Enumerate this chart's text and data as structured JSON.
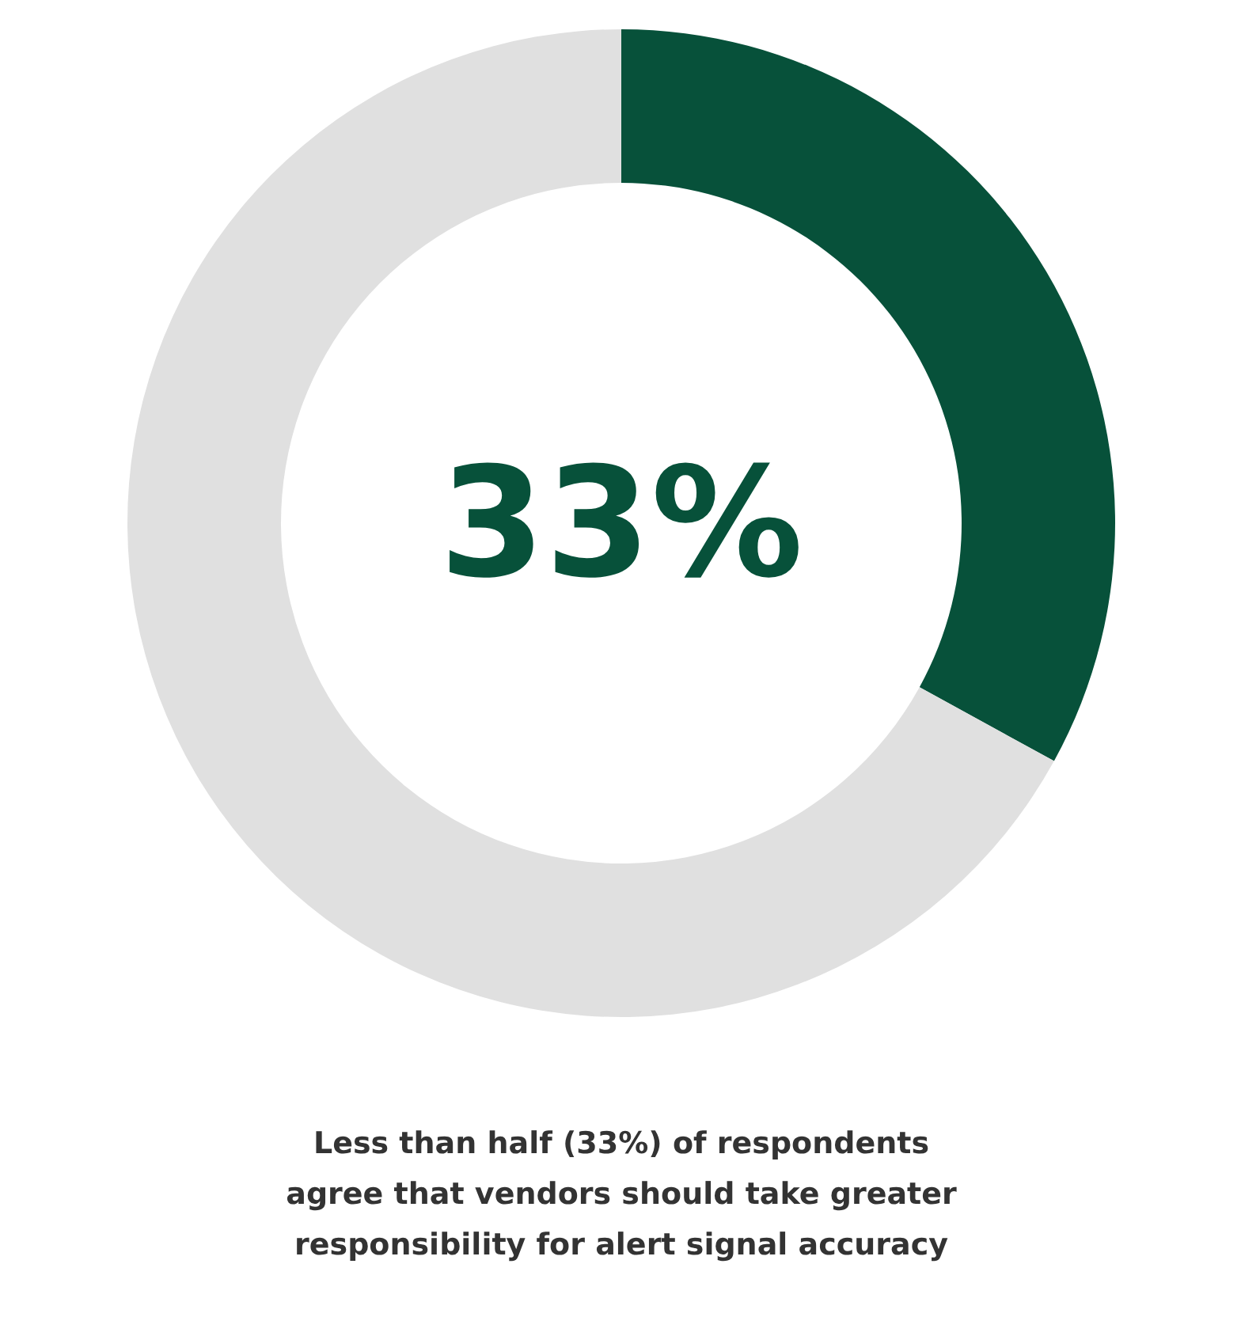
{
  "chart_data": {
    "type": "donut",
    "categories": [
      null,
      null
    ],
    "values": [
      33,
      67
    ],
    "colors": [
      "#07513a",
      "#e0e0e0"
    ],
    "value_labels": [
      "33%",
      null
    ],
    "annotations": [
      "Less than half (33%) of respondents agree that vendors should take greater responsibility for alert signal accuracy"
    ]
  }
}
